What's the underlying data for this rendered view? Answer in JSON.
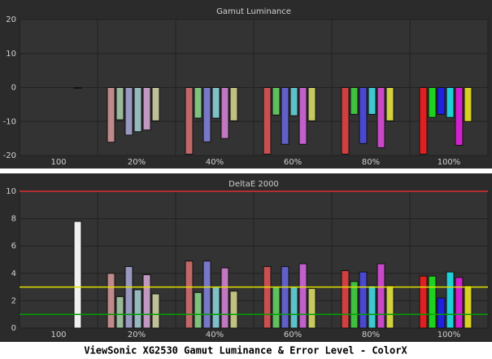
{
  "chart_data": [
    {
      "type": "bar",
      "title": "Gamut Luminance",
      "categories": [
        "100",
        "20%",
        "40%",
        "60%",
        "80%",
        "100%"
      ],
      "ylim": [
        -20,
        20
      ],
      "yticks": [
        -20,
        -10,
        0,
        10,
        20
      ],
      "grid": true,
      "series": [
        {
          "colors": [
            "#f0f0f0",
            null,
            null,
            null,
            null,
            null
          ],
          "values": [
            0,
            null,
            null,
            null,
            null,
            null
          ]
        },
        {
          "colors": [
            null,
            "#c08a8a",
            "#c06868",
            "#c85050",
            "#d04040",
            "#e02020"
          ],
          "values": [
            null,
            -16.1,
            -19.6,
            -19.6,
            -19.6,
            -19.6
          ]
        },
        {
          "colors": [
            null,
            "#9ab89a",
            "#80c080",
            "#60c060",
            "#40c040",
            "#20d020"
          ],
          "values": [
            null,
            -9.5,
            -9,
            -8.1,
            -7.9,
            -8.8
          ]
        },
        {
          "colors": [
            null,
            "#9898c0",
            "#7878c8",
            "#6060c8",
            "#4848d0",
            "#2020e0"
          ],
          "values": [
            null,
            -14,
            -16,
            -16.7,
            -16.5,
            -7.9
          ]
        },
        {
          "colors": [
            null,
            "#98b8c0",
            "#80c0c8",
            "#60c0c8",
            "#40c8d0",
            "#20d0d8"
          ],
          "values": [
            null,
            -13,
            -9,
            -8.3,
            -7.9,
            -8.8
          ]
        },
        {
          "colors": [
            null,
            "#c098c0",
            "#c078c0",
            "#c060c8",
            "#c848c8",
            "#d020d0"
          ],
          "values": [
            null,
            -12.5,
            -15,
            -16.7,
            -17.7,
            -17
          ]
        },
        {
          "colors": [
            null,
            "#c0c098",
            "#c0c080",
            "#c8c860",
            "#d0d040",
            "#d8d020"
          ],
          "values": [
            null,
            -9.8,
            -9.8,
            -9.8,
            -9.8,
            -10
          ]
        }
      ]
    },
    {
      "type": "bar",
      "title": "DeltaE 2000",
      "categories": [
        "100",
        "20%",
        "40%",
        "60%",
        "80%",
        "100%"
      ],
      "ylim": [
        0,
        10
      ],
      "yticks": [
        0,
        2,
        4,
        6,
        8,
        10
      ],
      "grid": true,
      "reference_lines": [
        {
          "value": 10,
          "color": "#e03030"
        },
        {
          "value": 3,
          "color": "#e0e000"
        },
        {
          "value": 1,
          "color": "#00a000"
        }
      ],
      "series": [
        {
          "colors": [
            "#f0f0f0",
            null,
            null,
            null,
            null,
            null
          ],
          "values": [
            7.8,
            null,
            null,
            null,
            null,
            null
          ]
        },
        {
          "colors": [
            null,
            "#c08a8a",
            "#c06868",
            "#c85050",
            "#d04040",
            "#e02020"
          ],
          "values": [
            null,
            4,
            4.9,
            4.5,
            4.2,
            3.8
          ]
        },
        {
          "colors": [
            null,
            "#9ab89a",
            "#80c080",
            "#60c060",
            "#40c040",
            "#20d020"
          ],
          "values": [
            null,
            2.3,
            2.6,
            3,
            3.4,
            3.8
          ]
        },
        {
          "colors": [
            null,
            "#9898c0",
            "#7878c8",
            "#6060c8",
            "#4848d0",
            "#2020e0"
          ],
          "values": [
            null,
            4.5,
            4.9,
            4.5,
            4.1,
            2.2
          ]
        },
        {
          "colors": [
            null,
            "#98b8c0",
            "#80c0c8",
            "#60c0c8",
            "#40c8d0",
            "#20d0d8"
          ],
          "values": [
            null,
            2.8,
            3,
            3,
            3.1,
            4.1
          ]
        },
        {
          "colors": [
            null,
            "#c098c0",
            "#c078c0",
            "#c060c8",
            "#c848c8",
            "#d020d0"
          ],
          "values": [
            null,
            3.9,
            4.4,
            4.7,
            4.7,
            3.7
          ]
        },
        {
          "colors": [
            null,
            "#c0c098",
            "#c0c080",
            "#c8c860",
            "#d0d040",
            "#d8d020"
          ],
          "values": [
            null,
            2.5,
            2.7,
            2.9,
            3.1,
            3.1
          ]
        }
      ]
    }
  ],
  "caption": "ViewSonic XG2530 Gamut Luminance & Error Level - ColorX"
}
